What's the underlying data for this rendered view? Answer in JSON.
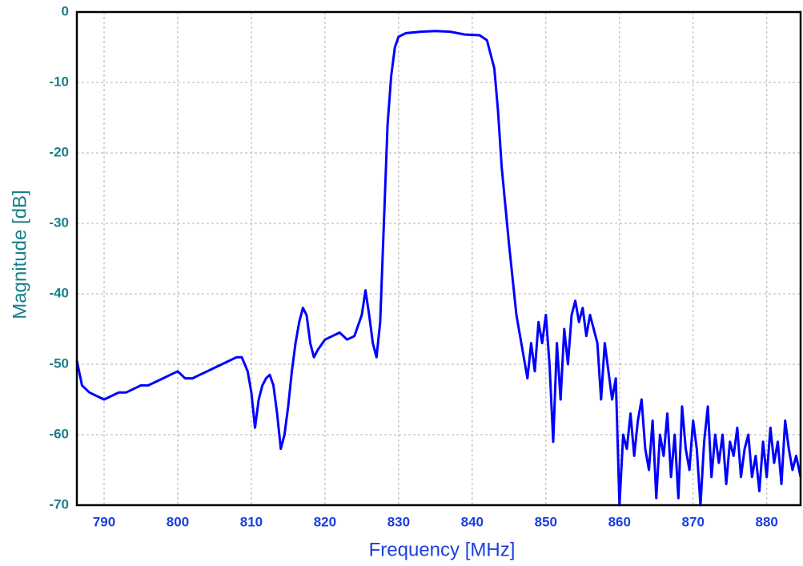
{
  "chart_data": {
    "type": "line",
    "x_label": "Frequency [MHz]",
    "y_label": "Magnitude [dB]",
    "color": "#0000ff",
    "grid": true,
    "xlim": [
      786.3,
      884.6
    ],
    "ylim": [
      -70,
      0
    ],
    "xticks": [
      790,
      800,
      810,
      820,
      830,
      840,
      850,
      860,
      870,
      880
    ],
    "yticks": [
      0,
      -10,
      -20,
      -30,
      -40,
      -50,
      -60,
      -70
    ],
    "x": [
      786.3,
      787,
      788,
      789,
      790,
      791,
      792,
      793,
      794,
      795,
      796,
      797,
      798,
      799,
      800,
      801,
      802,
      803,
      804,
      805,
      806,
      807,
      808,
      808.7,
      809.5,
      810,
      810.5,
      811,
      811.5,
      812,
      812.5,
      813,
      813.5,
      814,
      814.5,
      815,
      815.5,
      816,
      816.5,
      817,
      817.5,
      818,
      818.5,
      819,
      820,
      821,
      822,
      823,
      824,
      825,
      825.5,
      826,
      826.5,
      827,
      827.5,
      828,
      828.5,
      829,
      829.5,
      830,
      831,
      833,
      835,
      837,
      839,
      841,
      842,
      843,
      843.5,
      844,
      845,
      846,
      846.5,
      847,
      847.5,
      848,
      848.5,
      849,
      849.5,
      850,
      850.5,
      851,
      851.5,
      852,
      852.5,
      853,
      853.5,
      854,
      854.5,
      855,
      855.5,
      856,
      856.5,
      857,
      857.5,
      858,
      858.5,
      859,
      859.5,
      860,
      860.5,
      861,
      861.5,
      862,
      862.5,
      863,
      863.5,
      864,
      864.5,
      865,
      865.5,
      866,
      866.5,
      867,
      867.5,
      868,
      868.5,
      869,
      869.5,
      870,
      870.5,
      871,
      871.5,
      872,
      872.5,
      873,
      873.5,
      874,
      874.5,
      875,
      875.5,
      876,
      876.5,
      877,
      877.5,
      878,
      878.5,
      879,
      879.5,
      880,
      880.5,
      881,
      881.5,
      882,
      882.5,
      883,
      883.5,
      884,
      884.6
    ],
    "values": [
      -49.5,
      -53,
      -54,
      -54.5,
      -55,
      -54.5,
      -54,
      -54,
      -53.5,
      -53,
      -53,
      -52.5,
      -52,
      -51.5,
      -51,
      -52,
      -52,
      -51.5,
      -51,
      -50.5,
      -50,
      -49.5,
      -49,
      -49,
      -51,
      -54,
      -59,
      -55,
      -53,
      -52,
      -51.5,
      -53,
      -57,
      -62,
      -60,
      -56,
      -51,
      -47,
      -44,
      -42,
      -43,
      -47,
      -49,
      -48,
      -46.5,
      -46,
      -45.5,
      -46.5,
      -46,
      -43,
      -39.5,
      -43,
      -47,
      -49,
      -44,
      -30,
      -16,
      -9,
      -5,
      -3.5,
      -3,
      -2.8,
      -2.7,
      -2.8,
      -3.2,
      -3.3,
      -4,
      -8,
      -14,
      -22,
      -33,
      -43,
      -46,
      -49,
      -52,
      -47,
      -51,
      -44,
      -47,
      -43,
      -50,
      -61,
      -47,
      -55,
      -45,
      -50,
      -43,
      -41,
      -44,
      -42,
      -46,
      -43,
      -45,
      -47,
      -55,
      -47,
      -51,
      -55,
      -52,
      -70,
      -60,
      -62,
      -57,
      -63,
      -58,
      -55,
      -62,
      -65,
      -58,
      -69,
      -60,
      -63,
      -57,
      -66,
      -60,
      -69,
      -56,
      -62,
      -65,
      -58,
      -62,
      -70,
      -61,
      -56,
      -66,
      -60,
      -64,
      -60,
      -67,
      -61,
      -63,
      -59,
      -66,
      -62,
      -60,
      -66,
      -63,
      -68,
      -61,
      -66,
      -59,
      -64,
      -61,
      -67,
      -58,
      -62,
      -65,
      -63,
      -66
    ]
  }
}
